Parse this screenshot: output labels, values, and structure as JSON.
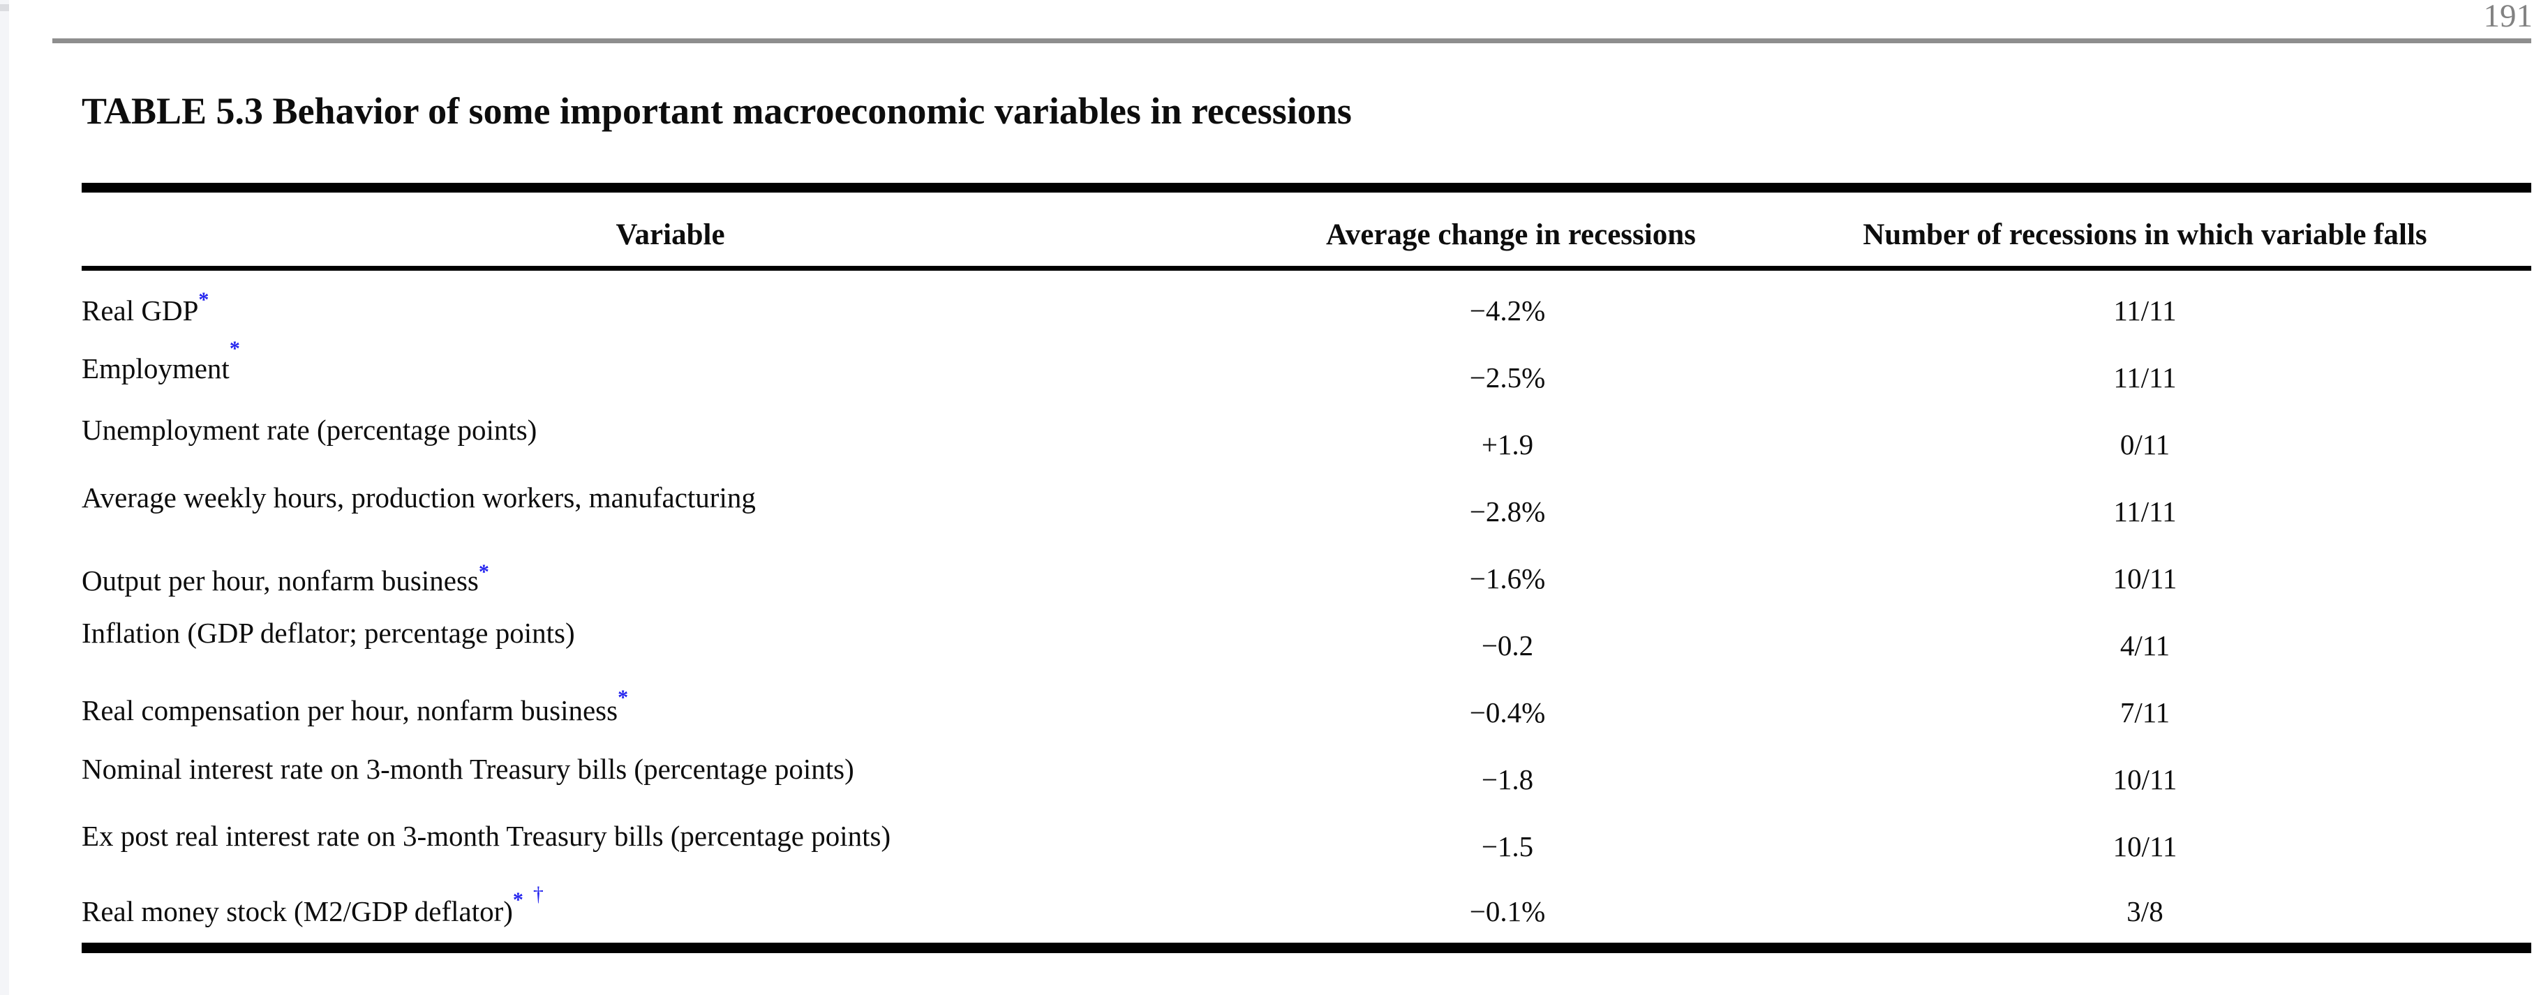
{
  "page": {
    "number": "191"
  },
  "table": {
    "title": "TABLE 5.3 Behavior of some important macroeconomic variables in recessions",
    "columns": [
      "Variable",
      "Average change in recessions",
      "Number of recessions in which variable falls"
    ],
    "rows": [
      {
        "variable": "Real GDP",
        "markers": [
          "*"
        ],
        "avg_change": "−4.2%",
        "recessions_in_which_falls": "11/11"
      },
      {
        "variable": "Employment",
        "markers": [
          "*"
        ],
        "avg_change": "−2.5%",
        "recessions_in_which_falls": "11/11"
      },
      {
        "variable": "Unemployment rate (percentage points)",
        "markers": [],
        "avg_change": "+1.9",
        "recessions_in_which_falls": "0/11"
      },
      {
        "variable": "Average weekly hours, production workers, manufacturing",
        "markers": [],
        "avg_change": "−2.8%",
        "recessions_in_which_falls": "11/11"
      },
      {
        "variable": "Output per hour, nonfarm business",
        "markers": [
          "*"
        ],
        "avg_change": "−1.6%",
        "recessions_in_which_falls": "10/11"
      },
      {
        "variable": "Inflation (GDP deflator; percentage points)",
        "markers": [],
        "avg_change": "−0.2",
        "recessions_in_which_falls": "4/11"
      },
      {
        "variable": "Real compensation per hour, nonfarm business",
        "markers": [
          "*"
        ],
        "avg_change": "−0.4%",
        "recessions_in_which_falls": "7/11"
      },
      {
        "variable": "Nominal interest rate on 3-month Treasury bills (percentage points)",
        "markers": [],
        "avg_change": "−1.8",
        "recessions_in_which_falls": "10/11"
      },
      {
        "variable": "Ex post real interest rate on 3-month Treasury bills (percentage points)",
        "markers": [],
        "avg_change": "−1.5",
        "recessions_in_which_falls": "10/11"
      },
      {
        "variable": "Real money stock (M2/GDP deflator)",
        "markers": [
          "*",
          "†"
        ],
        "avg_change": "−0.1%",
        "recessions_in_which_falls": "3/8"
      }
    ]
  },
  "colors": {
    "footnote_marker_blue": "#2222ee",
    "page_number_gray": "#828282",
    "header_rule_gray": "#8e8e8e"
  }
}
